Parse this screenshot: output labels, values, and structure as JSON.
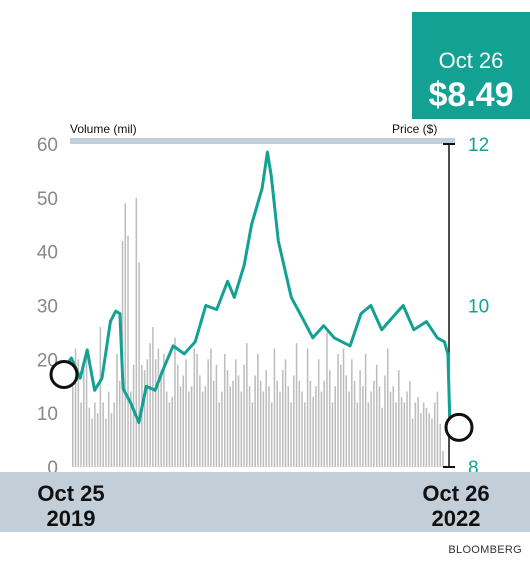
{
  "callout": {
    "date": "Oct 26",
    "price": "$8.49"
  },
  "footer": {
    "credit": "BLOOMBERG"
  },
  "chart_data": {
    "type": "bar+line",
    "x_start_label": [
      "Oct 25",
      "2019"
    ],
    "x_end_label": [
      "Oct 26",
      "2022"
    ],
    "left_axis": {
      "label": "Volume (mil)",
      "ticks": [
        0,
        10,
        20,
        30,
        40,
        50,
        60
      ],
      "range": [
        0,
        60
      ]
    },
    "right_axis": {
      "label": "Price ($)",
      "ticks": [
        8,
        10,
        12
      ],
      "range": [
        8,
        12
      ]
    },
    "volume": [
      15,
      22,
      20,
      12,
      19,
      21,
      11,
      9,
      12,
      10,
      26,
      12,
      9,
      14,
      10,
      12,
      21,
      16,
      42,
      49,
      43,
      14,
      19,
      50,
      38,
      19,
      18,
      20,
      23,
      26,
      20,
      22,
      18,
      21,
      14,
      12,
      13,
      24,
      19,
      15,
      17,
      20,
      14,
      15,
      22,
      21,
      17,
      14,
      15,
      20,
      22,
      16,
      19,
      12,
      14,
      21,
      18,
      15,
      16,
      20,
      17,
      14,
      19,
      23,
      15,
      12,
      17,
      21,
      16,
      14,
      18,
      15,
      12,
      22,
      16,
      14,
      18,
      20,
      15,
      12,
      17,
      23,
      16,
      14,
      12,
      22,
      16,
      13,
      15,
      20,
      14,
      16,
      25,
      18,
      12,
      15,
      21,
      19,
      22,
      17,
      14,
      20,
      16,
      12,
      18,
      15,
      21,
      12,
      14,
      16,
      19,
      15,
      11,
      17,
      22,
      14,
      15,
      12,
      18,
      13,
      12,
      14,
      16,
      9,
      12,
      13,
      10,
      12,
      11,
      10,
      9,
      12,
      14,
      8,
      3
    ],
    "price": [
      [
        "2019-10-25",
        9.22
      ],
      [
        "2019-11-15",
        9.35
      ],
      [
        "2019-12-10",
        9.1
      ],
      [
        "2019-12-30",
        9.45
      ],
      [
        "2020-01-20",
        8.95
      ],
      [
        "2020-02-10",
        9.1
      ],
      [
        "2020-03-05",
        9.8
      ],
      [
        "2020-03-20",
        9.93
      ],
      [
        "2020-04-01",
        9.9
      ],
      [
        "2020-04-10",
        8.97
      ],
      [
        "2020-05-01",
        8.8
      ],
      [
        "2020-05-25",
        8.55
      ],
      [
        "2020-06-15",
        9.0
      ],
      [
        "2020-07-10",
        8.95
      ],
      [
        "2020-08-01",
        9.2
      ],
      [
        "2020-08-30",
        9.5
      ],
      [
        "2020-10-01",
        9.4
      ],
      [
        "2020-11-01",
        9.55
      ],
      [
        "2020-12-01",
        10.0
      ],
      [
        "2021-01-01",
        9.95
      ],
      [
        "2021-02-01",
        10.3
      ],
      [
        "2021-02-20",
        10.1
      ],
      [
        "2021-03-20",
        10.5
      ],
      [
        "2021-04-10",
        11.0
      ],
      [
        "2021-05-10",
        11.45
      ],
      [
        "2021-05-25",
        11.9
      ],
      [
        "2021-06-05",
        11.6
      ],
      [
        "2021-06-25",
        10.8
      ],
      [
        "2021-08-01",
        10.1
      ],
      [
        "2021-09-01",
        9.85
      ],
      [
        "2021-10-01",
        9.6
      ],
      [
        "2021-11-01",
        9.75
      ],
      [
        "2021-12-01",
        9.6
      ],
      [
        "2022-01-15",
        9.5
      ],
      [
        "2022-02-15",
        9.9
      ],
      [
        "2022-03-15",
        10.0
      ],
      [
        "2022-04-15",
        9.7
      ],
      [
        "2022-05-15",
        9.85
      ],
      [
        "2022-06-15",
        10.0
      ],
      [
        "2022-07-15",
        9.7
      ],
      [
        "2022-08-20",
        9.8
      ],
      [
        "2022-09-20",
        9.6
      ],
      [
        "2022-10-10",
        9.55
      ],
      [
        "2022-10-20",
        9.4
      ],
      [
        "2022-10-26",
        8.49
      ]
    ],
    "colors": {
      "price_line": "#12A192",
      "volume_bars": "#BDBDBD",
      "band": "#C3CFD8"
    }
  }
}
